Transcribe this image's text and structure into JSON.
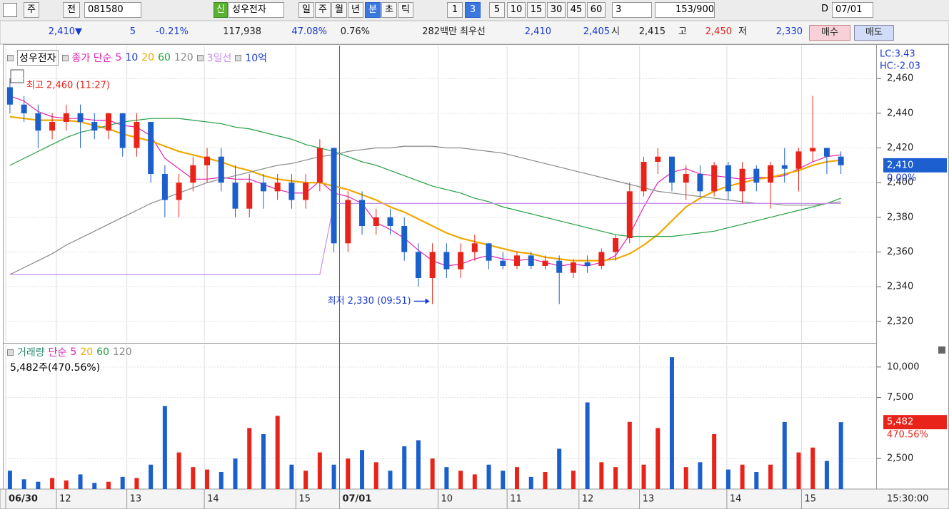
{
  "toolbar": {
    "items": [
      "주",
      "전",
      "081580",
      "신",
      "성우전자",
      "일",
      "주",
      "월",
      "년",
      "분",
      "초",
      "틱",
      "1",
      "3",
      "5",
      "10",
      "15",
      "30",
      "45",
      "60",
      "3",
      "153/900",
      "D",
      "07/01"
    ]
  },
  "info_bar": {
    "items": [
      "2,410▼",
      "5",
      "-0.21%",
      "117,938",
      "47.08%",
      "0.76%",
      "282백만",
      "최우선",
      "2,410",
      "2,405",
      "시",
      "2,415",
      "고",
      "2,450",
      "저",
      "2,330",
      "매수",
      "매도"
    ]
  },
  "chart_data": [
    {
      "type": "candlestick",
      "legend": [
        "성우전자",
        "종가 단순",
        "10",
        "10억"
      ],
      "indicators": [
        "LC:3.43",
        "HC:-2.03"
      ],
      "up_color": "#e8231a",
      "down_color": "#1a5fcc",
      "open": [
        2455,
        2445,
        2440,
        2430,
        2435,
        2440,
        2435,
        2430,
        2440,
        2420,
        2435,
        2405,
        2390,
        2400,
        2410,
        2415,
        2400,
        2385,
        2400,
        2395,
        2400,
        2390,
        2400,
        2420,
        2365,
        2390,
        2375,
        2380,
        2375,
        2360,
        2345,
        2360,
        2350,
        2360,
        2365,
        2355,
        2352,
        2358,
        2352,
        2355,
        2348,
        2354,
        2352,
        2360,
        2368,
        2395,
        2412,
        2415,
        2400,
        2405,
        2395,
        2410,
        2395,
        2408,
        2400,
        2410,
        2408,
        2418,
        2420,
        2415
      ],
      "high": [
        2460,
        2450,
        2445,
        2440,
        2445,
        2445,
        2440,
        2440,
        2440,
        2440,
        2435,
        2410,
        2405,
        2415,
        2420,
        2420,
        2410,
        2405,
        2405,
        2405,
        2405,
        2405,
        2425,
        2420,
        2395,
        2395,
        2385,
        2385,
        2380,
        2365,
        2365,
        2365,
        2365,
        2370,
        2365,
        2360,
        2360,
        2360,
        2358,
        2358,
        2356,
        2358,
        2362,
        2370,
        2400,
        2415,
        2420,
        2415,
        2410,
        2410,
        2412,
        2412,
        2412,
        2410,
        2412,
        2420,
        2420,
        2450,
        2420,
        2418
      ],
      "low": [
        2440,
        2435,
        2420,
        2425,
        2430,
        2420,
        2425,
        2425,
        2415,
        2415,
        2400,
        2380,
        2380,
        2395,
        2400,
        2395,
        2380,
        2380,
        2385,
        2390,
        2385,
        2385,
        2395,
        2360,
        2360,
        2370,
        2370,
        2370,
        2355,
        2340,
        2330,
        2345,
        2345,
        2355,
        2350,
        2350,
        2350,
        2350,
        2350,
        2330,
        2345,
        2348,
        2350,
        2355,
        2365,
        2392,
        2405,
        2395,
        2390,
        2392,
        2392,
        2390,
        2388,
        2395,
        2385,
        2400,
        2395,
        2412,
        2405,
        2405
      ],
      "close": [
        2445,
        2440,
        2430,
        2435,
        2440,
        2435,
        2430,
        2440,
        2420,
        2435,
        2405,
        2390,
        2400,
        2410,
        2415,
        2400,
        2385,
        2400,
        2395,
        2400,
        2390,
        2400,
        2420,
        2365,
        2390,
        2375,
        2380,
        2375,
        2360,
        2345,
        2360,
        2350,
        2360,
        2365,
        2355,
        2352,
        2358,
        2352,
        2355,
        2348,
        2354,
        2352,
        2360,
        2368,
        2395,
        2412,
        2415,
        2400,
        2405,
        2395,
        2410,
        2395,
        2408,
        2400,
        2410,
        2408,
        2418,
        2420,
        2415,
        2410
      ],
      "series": [
        {
          "name": "5",
          "color": "#e020b0",
          "values": [
            2450,
            2447,
            2441,
            2438,
            2437,
            2437,
            2436,
            2436,
            2433,
            2432,
            2427,
            2414,
            2408,
            2402,
            2402,
            2403,
            2402,
            2402,
            2399,
            2396,
            2394,
            2394,
            2401,
            2394,
            2392,
            2388,
            2377,
            2373,
            2368,
            2361,
            2355,
            2352,
            2353,
            2356,
            2358,
            2356,
            2355,
            2356,
            2354,
            2352,
            2353,
            2352,
            2354,
            2358,
            2370,
            2386,
            2400,
            2406,
            2408,
            2405,
            2404,
            2403,
            2402,
            2403,
            2403,
            2404,
            2408,
            2412,
            2415,
            2416
          ]
        },
        {
          "name": "20",
          "color": "#f0a800",
          "values": [
            2438,
            2437,
            2436,
            2436,
            2436,
            2435,
            2433,
            2431,
            2428,
            2426,
            2424,
            2421,
            2418,
            2416,
            2414,
            2412,
            2409,
            2407,
            2404,
            2402,
            2401,
            2400,
            2400,
            2398,
            2396,
            2393,
            2390,
            2386,
            2383,
            2379,
            2375,
            2371,
            2368,
            2366,
            2364,
            2362,
            2360,
            2359,
            2357,
            2356,
            2355,
            2355,
            2355,
            2356,
            2359,
            2364,
            2370,
            2378,
            2386,
            2391,
            2395,
            2398,
            2400,
            2402,
            2403,
            2405,
            2407,
            2410,
            2412,
            2413
          ]
        },
        {
          "name": "60",
          "color": "#22a040",
          "values": [
            2410,
            2414,
            2418,
            2422,
            2426,
            2429,
            2431,
            2433,
            2435,
            2436,
            2437,
            2437,
            2437,
            2436,
            2435,
            2434,
            2432,
            2431,
            2429,
            2427,
            2425,
            2422,
            2420,
            2418,
            2415,
            2412,
            2410,
            2407,
            2404,
            2401,
            2398,
            2396,
            2394,
            2391,
            2389,
            2386,
            2384,
            2382,
            2380,
            2378,
            2376,
            2374,
            2372,
            2370,
            2369,
            2369,
            2369,
            2369,
            2370,
            2371,
            2372,
            2374,
            2376,
            2378,
            2380,
            2382,
            2384,
            2386,
            2388,
            2391
          ]
        },
        {
          "name": "120",
          "color": "#888888",
          "values": [
            2347,
            2351,
            2355,
            2359,
            2364,
            2368,
            2372,
            2376,
            2380,
            2384,
            2388,
            2391,
            2394,
            2397,
            2400,
            2402,
            2404,
            2406,
            2408,
            2410,
            2411,
            2413,
            2415,
            2416,
            2418,
            2419,
            2420,
            2420,
            2421,
            2421,
            2421,
            2420,
            2420,
            2419,
            2418,
            2417,
            2415,
            2413,
            2411,
            2409,
            2407,
            2405,
            2403,
            2401,
            2399,
            2397,
            2395,
            2394,
            2393,
            2392,
            2391,
            2390,
            2389,
            2388,
            2388,
            2387,
            2387,
            2387,
            2388,
            2389
          ]
        },
        {
          "name": "3일선",
          "color": "#c890e8",
          "values": [
            2347,
            2347,
            2347,
            2347,
            2347,
            2347,
            2347,
            2347,
            2347,
            2347,
            2347,
            2347,
            2347,
            2347,
            2347,
            2347,
            2347,
            2347,
            2347,
            2347,
            2347,
            2347,
            2347,
            2388,
            2388,
            2388,
            2388,
            2388,
            2388,
            2388,
            2388,
            2388,
            2388,
            2388,
            2388,
            2388,
            2388,
            2388,
            2388,
            2388,
            2388,
            2388,
            2388,
            2388,
            2388,
            2388,
            2388,
            2388,
            2388,
            2388,
            2388,
            2388,
            2388,
            2388,
            2388,
            2388,
            2388,
            2388,
            2388,
            2388
          ]
        }
      ],
      "annotations": [
        {
          "label": "최고 2,460 (11:27)"
        },
        {
          "label": "최저 2,330 (09:51)"
        }
      ],
      "marker": {
        "value": 2410,
        "label": "2,410",
        "change": "0.00%"
      },
      "ylim": [
        2308,
        2479
      ],
      "yticks": [
        {
          "value": 2320,
          "label": "2,320"
        },
        {
          "value": 2340,
          "label": "2,340"
        },
        {
          "value": 2360,
          "label": "2,360"
        },
        {
          "value": 2380,
          "label": "2,380"
        },
        {
          "value": 2400,
          "label": "2,400"
        },
        {
          "value": 2420,
          "label": "2,420"
        },
        {
          "value": 2440,
          "label": "2,440"
        },
        {
          "value": 2460,
          "label": "2,460"
        }
      ],
      "grid": true
    },
    {
      "type": "bar",
      "legend": [
        "거래량",
        "단순",
        "5",
        "20",
        "60",
        "120"
      ],
      "annotation": "5,482주(470.56%)",
      "values": [
        1500,
        800,
        600,
        900,
        700,
        1200,
        500,
        600,
        1000,
        900,
        2000,
        6800,
        3000,
        1800,
        1600,
        1400,
        2500,
        5000,
        4500,
        6000,
        2000,
        1500,
        3000,
        2000,
        2500,
        3200,
        2200,
        1500,
        3500,
        4000,
        2500,
        1800,
        1500,
        1200,
        2000,
        1500,
        1800,
        1000,
        1400,
        3300,
        1500,
        7100,
        2200,
        1800,
        5500,
        2000,
        5000,
        10800,
        1800,
        2200,
        4500,
        1600,
        2000,
        1400,
        2000,
        5500,
        3000,
        3400,
        2300,
        5482
      ],
      "marker": {
        "value": 5482,
        "label": "5,482",
        "change": "470.56%"
      },
      "ylim": [
        0,
        11800
      ],
      "yticks": [
        {
          "value": 2500,
          "label": "2,500"
        },
        {
          "value": 7500,
          "label": "7,500"
        },
        {
          "value": 10000,
          "label": "10,000"
        }
      ],
      "xlim": [
        -0.3,
        61.4
      ],
      "xticks": [
        {
          "value": -0.3,
          "label": "06/30"
        },
        {
          "value": 3.3,
          "label": "12"
        },
        {
          "value": 8.3,
          "label": "13"
        },
        {
          "value": 13.8,
          "label": "14"
        },
        {
          "value": 20.3,
          "label": "15"
        },
        {
          "value": 23.4,
          "label": "07/01"
        },
        {
          "value": 30.4,
          "label": "10"
        },
        {
          "value": 35.3,
          "label": "11"
        },
        {
          "value": 40.4,
          "label": "12"
        },
        {
          "value": 44.7,
          "label": "13"
        },
        {
          "value": 50.9,
          "label": "14"
        },
        {
          "value": 56.2,
          "label": "15"
        }
      ],
      "x_end_label": "15:30:00",
      "grid": true
    }
  ]
}
